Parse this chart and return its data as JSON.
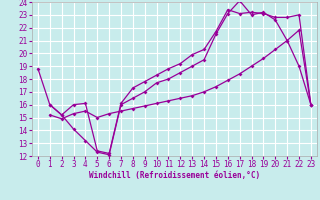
{
  "xlabel": "Windchill (Refroidissement éolien,°C)",
  "bg_color": "#c8ecec",
  "grid_color": "#ffffff",
  "line_color": "#990099",
  "xlim": [
    -0.5,
    23.5
  ],
  "ylim": [
    12,
    24
  ],
  "xticks": [
    0,
    1,
    2,
    3,
    4,
    5,
    6,
    7,
    8,
    9,
    10,
    11,
    12,
    13,
    14,
    15,
    16,
    17,
    18,
    19,
    20,
    21,
    22,
    23
  ],
  "yticks": [
    12,
    13,
    14,
    15,
    16,
    17,
    18,
    19,
    20,
    21,
    22,
    23,
    24
  ],
  "line1_x": [
    0,
    1,
    2,
    3,
    4,
    5,
    6,
    7,
    8,
    9,
    10,
    11,
    12,
    13,
    14,
    15,
    16,
    17,
    18,
    19,
    20,
    21,
    22,
    23
  ],
  "line1_y": [
    18.8,
    16.0,
    15.2,
    14.1,
    13.2,
    12.3,
    12.1,
    16.0,
    16.5,
    17.0,
    17.7,
    18.0,
    18.5,
    19.0,
    19.5,
    21.5,
    23.1,
    24.1,
    23.0,
    23.2,
    22.6,
    21.0,
    19.0,
    16.0
  ],
  "line2_x": [
    1,
    2,
    3,
    4,
    5,
    6,
    7,
    8,
    9,
    10,
    11,
    12,
    13,
    14,
    15,
    16,
    17,
    18,
    19,
    20,
    21,
    22,
    23
  ],
  "line2_y": [
    16.0,
    15.2,
    16.0,
    16.1,
    12.4,
    12.2,
    16.1,
    17.3,
    17.8,
    18.3,
    18.8,
    19.2,
    19.9,
    20.3,
    21.7,
    23.4,
    23.1,
    23.2,
    23.1,
    22.8,
    22.8,
    23.0,
    16.0
  ],
  "line3_x": [
    1,
    2,
    3,
    4,
    5,
    6,
    7,
    8,
    9,
    10,
    11,
    12,
    13,
    14,
    15,
    16,
    17,
    18,
    19,
    20,
    21,
    22,
    23
  ],
  "line3_y": [
    15.2,
    14.9,
    15.3,
    15.5,
    15.0,
    15.3,
    15.5,
    15.7,
    15.9,
    16.1,
    16.3,
    16.5,
    16.7,
    17.0,
    17.4,
    17.9,
    18.4,
    19.0,
    19.6,
    20.3,
    21.0,
    21.8,
    16.0
  ]
}
